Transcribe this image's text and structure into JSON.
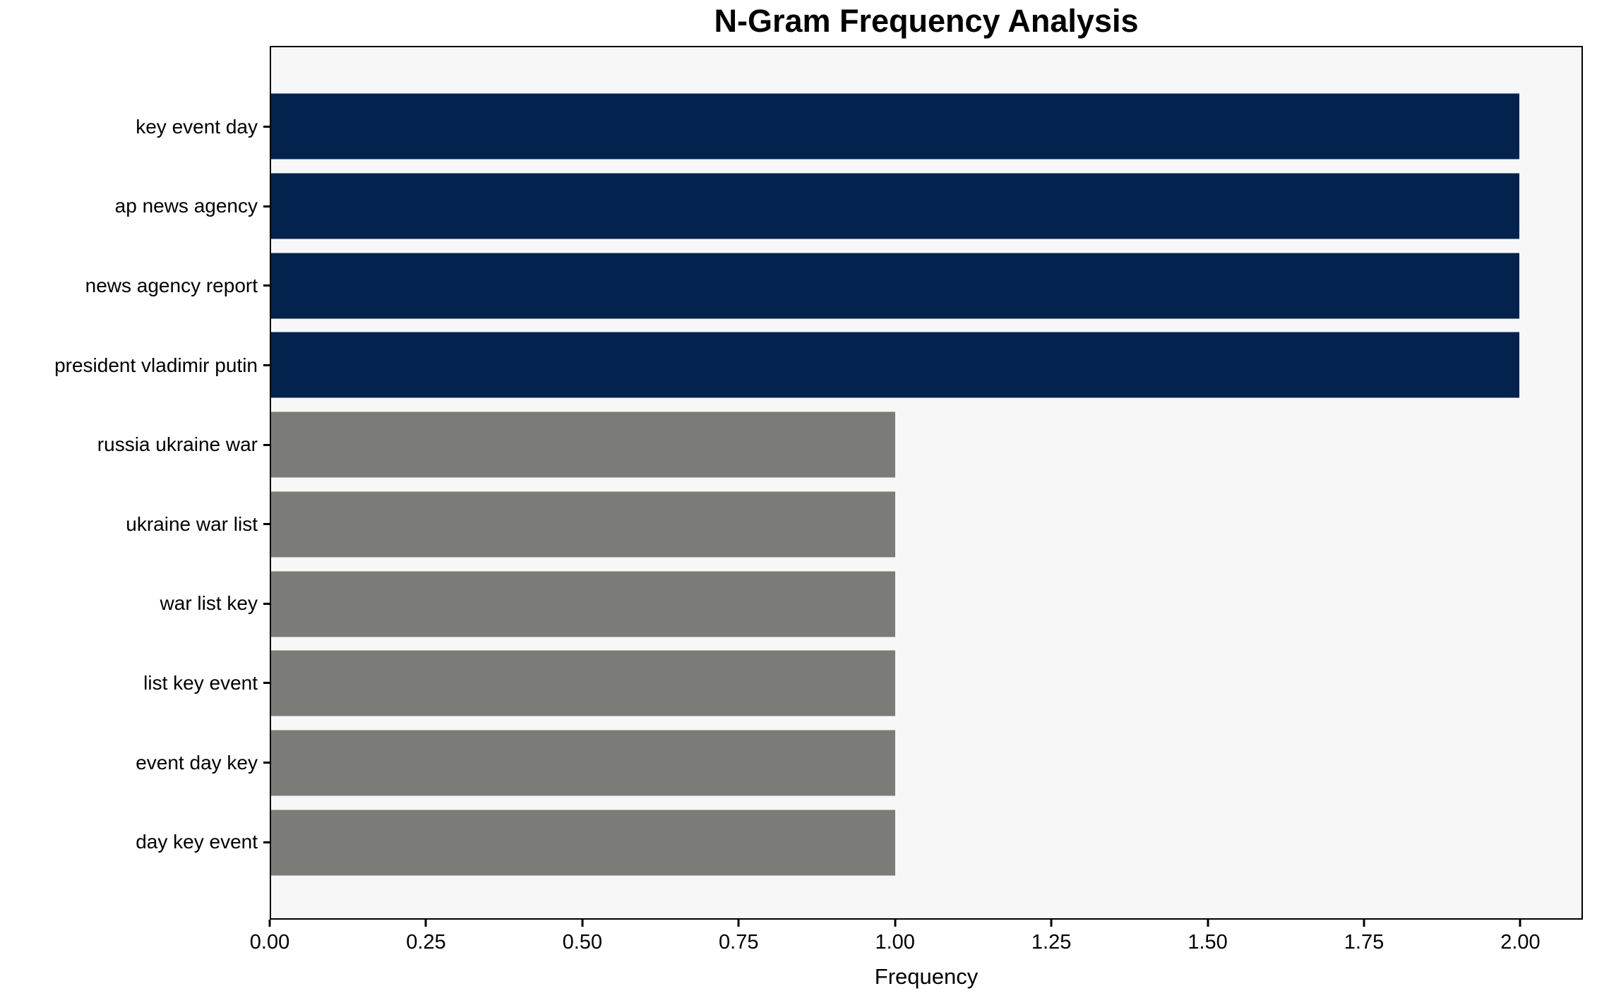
{
  "chart_data": {
    "type": "bar",
    "orientation": "horizontal",
    "title": "N-Gram Frequency Analysis",
    "xlabel": "Frequency",
    "ylabel": "",
    "categories": [
      "key event day",
      "ap news agency",
      "news agency report",
      "president vladimir putin",
      "russia ukraine war",
      "ukraine war list",
      "war list key",
      "list key event",
      "event day key",
      "day key event"
    ],
    "values": [
      2,
      2,
      2,
      2,
      1,
      1,
      1,
      1,
      1,
      1
    ],
    "bar_colors": [
      "#03224d",
      "#03224d",
      "#03224d",
      "#03224d",
      "#7b7b78",
      "#7b7b78",
      "#7b7b78",
      "#7b7b78",
      "#7b7b78",
      "#7b7b78"
    ],
    "xlim": [
      0,
      2.1
    ],
    "xticks": [
      0.0,
      0.25,
      0.5,
      0.75,
      1.0,
      1.25,
      1.5,
      1.75,
      2.0
    ],
    "xtick_labels": [
      "0.00",
      "0.25",
      "0.50",
      "0.75",
      "1.00",
      "1.25",
      "1.50",
      "1.75",
      "2.00"
    ],
    "grid": false,
    "legend": null,
    "colors": {
      "navy": "#03224d",
      "gray": "#7b7b78",
      "plot_background": "#f7f7f8",
      "figure_background": "#ffffff",
      "spine": "#000000",
      "text": "#000000"
    }
  }
}
